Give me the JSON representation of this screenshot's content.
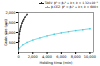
{
  "chart_data": {
    "type": "line",
    "xlabel": "Holding time (min)",
    "ylabel": "Grain size (μm)",
    "series": [
      {
        "name": "TA6V: β² = β₀² + k·t, k = 1.32×10⁻¹",
        "color": "#222222",
        "marker": "square",
        "x": [
          0,
          30,
          60,
          120,
          180,
          240,
          300,
          360,
          480,
          600,
          720,
          900,
          1200
        ],
        "values": [
          200,
          560,
          720,
          920,
          1060,
          1170,
          1260,
          1330,
          1460,
          1560,
          1650,
          1760,
          1900
        ]
      },
      {
        "name": "β-CEZ: β² = β₀² + k·t, k = 600·t",
        "color": "#44ccdd",
        "marker": "square",
        "x": [
          0,
          600,
          1200,
          2000,
          3000,
          4000,
          5000,
          6000,
          7000,
          8000,
          9000,
          10000
        ],
        "values": [
          180,
          380,
          500,
          620,
          730,
          830,
          910,
          980,
          1040,
          1095,
          1140,
          1190
        ]
      }
    ],
    "xlim": [
      0,
      10500
    ],
    "ylim": [
      0,
      2000
    ],
    "xticks": [
      0,
      2000,
      4000,
      6000,
      8000,
      10000
    ],
    "yticks": [
      500,
      1000,
      1500,
      2000
    ],
    "legend": "upper right"
  }
}
